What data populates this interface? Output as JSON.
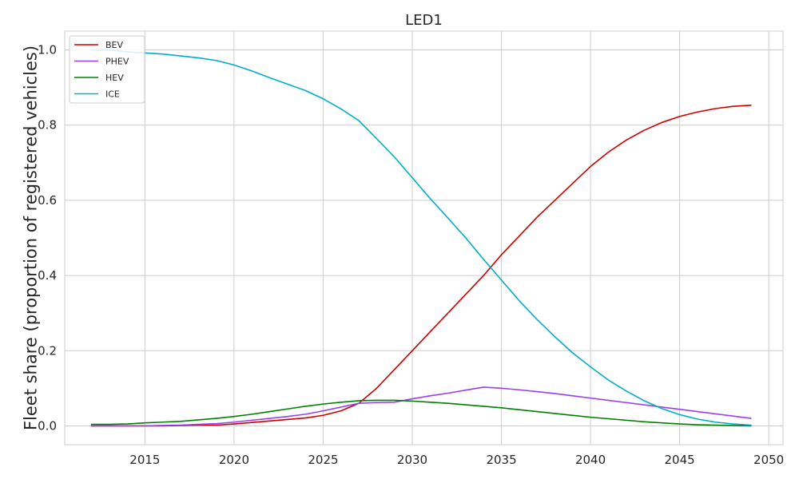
{
  "chart_data": {
    "type": "line",
    "title": "LED1",
    "xlabel": "",
    "ylabel": "Fleet share (proportion of registered vehicles)",
    "xlim": [
      2010.5,
      2050.8
    ],
    "ylim": [
      -0.05,
      1.05
    ],
    "xticks": [
      2015,
      2020,
      2025,
      2030,
      2035,
      2040,
      2045,
      2050
    ],
    "yticks": [
      0.0,
      0.2,
      0.4,
      0.6,
      0.8,
      1.0
    ],
    "ytick_labels": [
      "0.0",
      "0.2",
      "0.4",
      "0.6",
      "0.8",
      "1.0"
    ],
    "grid": true,
    "legend": "top-left",
    "x": [
      2012,
      2013,
      2014,
      2015,
      2016,
      2017,
      2018,
      2019,
      2020,
      2021,
      2022,
      2023,
      2024,
      2025,
      2026,
      2027,
      2028,
      2029,
      2030,
      2031,
      2032,
      2033,
      2034,
      2035,
      2036,
      2037,
      2038,
      2039,
      2040,
      2041,
      2042,
      2043,
      2044,
      2045,
      2046,
      2047,
      2048,
      2049
    ],
    "series": [
      {
        "name": "BEV",
        "color": "#cc0000",
        "values": [
          0.0,
          0.0,
          0.0,
          0.0,
          0.0,
          0.001,
          0.002,
          0.002,
          0.005,
          0.009,
          0.013,
          0.017,
          0.021,
          0.028,
          0.04,
          0.06,
          0.1,
          0.15,
          0.2,
          0.25,
          0.3,
          0.35,
          0.4,
          0.455,
          0.505,
          0.555,
          0.6,
          0.645,
          0.69,
          0.728,
          0.76,
          0.786,
          0.807,
          0.823,
          0.835,
          0.844,
          0.85,
          0.853
        ]
      },
      {
        "name": "PHEV",
        "color": "#9a3ff0",
        "values": [
          0.0,
          0.0,
          0.0,
          0.0,
          0.001,
          0.002,
          0.004,
          0.006,
          0.01,
          0.015,
          0.02,
          0.025,
          0.031,
          0.04,
          0.05,
          0.06,
          0.062,
          0.063,
          0.072,
          0.08,
          0.087,
          0.095,
          0.103,
          0.1,
          0.096,
          0.091,
          0.086,
          0.08,
          0.074,
          0.068,
          0.062,
          0.056,
          0.05,
          0.044,
          0.038,
          0.032,
          0.026,
          0.02
        ]
      },
      {
        "name": "HEV",
        "color": "#008000",
        "values": [
          0.004,
          0.004,
          0.005,
          0.008,
          0.01,
          0.012,
          0.016,
          0.02,
          0.025,
          0.031,
          0.038,
          0.045,
          0.052,
          0.058,
          0.063,
          0.067,
          0.068,
          0.068,
          0.066,
          0.063,
          0.06,
          0.056,
          0.052,
          0.048,
          0.043,
          0.038,
          0.033,
          0.028,
          0.023,
          0.019,
          0.015,
          0.011,
          0.008,
          0.005,
          0.003,
          0.002,
          0.001,
          0.0
        ]
      },
      {
        "name": "ICE",
        "color": "#00aec8",
        "values": [
          1.0,
          1.0,
          0.995,
          0.992,
          0.989,
          0.984,
          0.979,
          0.972,
          0.96,
          0.944,
          0.926,
          0.909,
          0.892,
          0.87,
          0.843,
          0.812,
          0.764,
          0.715,
          0.66,
          0.605,
          0.553,
          0.5,
          0.443,
          0.388,
          0.333,
          0.283,
          0.237,
          0.194,
          0.157,
          0.122,
          0.093,
          0.067,
          0.046,
          0.03,
          0.018,
          0.01,
          0.005,
          0.002
        ]
      }
    ]
  }
}
